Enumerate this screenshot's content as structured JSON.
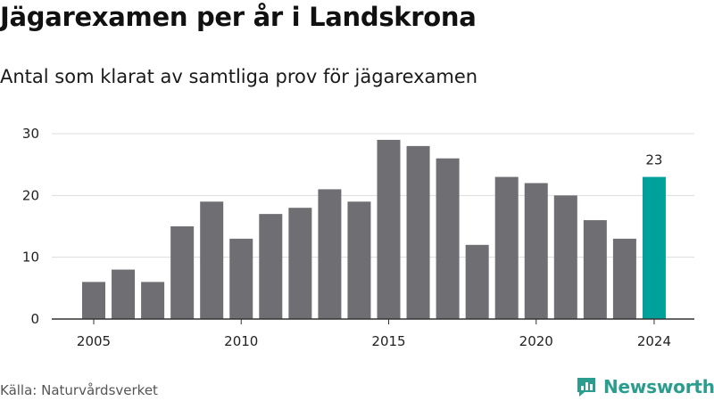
{
  "title": "Jägarexamen per år i Landskrona",
  "subtitle": "Antal som klarat av samtliga prov för jägarexamen",
  "source": "Källa: Naturvårdsverket",
  "brand": "Newsworthy",
  "colors": {
    "bar": "#6f6e73",
    "highlight": "#00a19a",
    "grid": "#dddddd",
    "brand": "#2a9d8f"
  },
  "chart_data": {
    "type": "bar",
    "x": [
      2005,
      2006,
      2007,
      2008,
      2009,
      2010,
      2011,
      2012,
      2013,
      2014,
      2015,
      2016,
      2017,
      2018,
      2019,
      2020,
      2021,
      2022,
      2023,
      2024
    ],
    "values": [
      6,
      8,
      6,
      15,
      19,
      13,
      17,
      18,
      21,
      19,
      29,
      28,
      26,
      12,
      23,
      22,
      20,
      16,
      13,
      23
    ],
    "x_ticks": [
      2005,
      2010,
      2015,
      2020,
      2024
    ],
    "y_ticks": [
      0,
      10,
      20,
      30
    ],
    "ylim": [
      0,
      30
    ],
    "grid": true,
    "highlight_year": 2024,
    "annotation": "23"
  }
}
